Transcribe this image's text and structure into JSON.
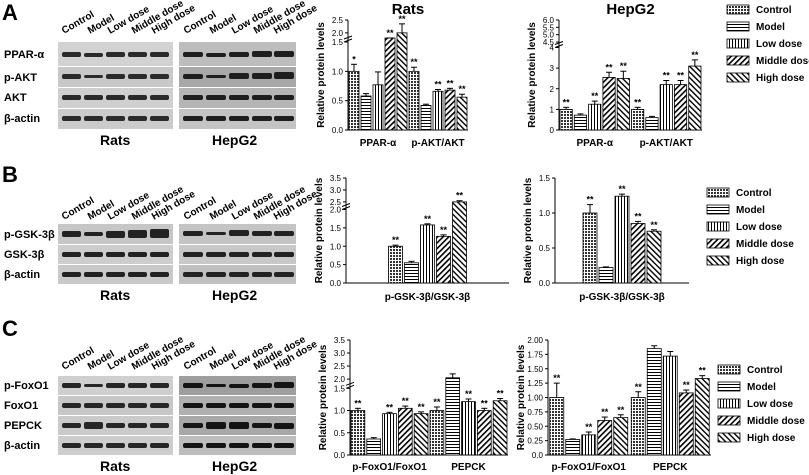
{
  "panels": [
    {
      "letter": "A",
      "blot": {
        "proteins": [
          "PPAR-α",
          "p-AKT",
          "AKT",
          "β-actin"
        ],
        "lanes": [
          "Control",
          "Model",
          "Low dose",
          "Middle dose",
          "High dose"
        ],
        "captions": [
          "Rats",
          "HepG2"
        ]
      }
    },
    {
      "letter": "B",
      "blot": {
        "proteins": [
          "p-GSK-3β",
          "GSK-3β",
          "β-actin"
        ],
        "lanes": [
          "Control",
          "Model",
          "Low dose",
          "Middle dose",
          "High dose"
        ],
        "captions": [
          "Rats",
          "HepG2"
        ]
      }
    },
    {
      "letter": "C",
      "blot": {
        "proteins": [
          "p-FoxO1",
          "FoxO1",
          "PEPCK",
          "β-actin"
        ],
        "lanes": [
          "Control",
          "Model",
          "Low dose",
          "Middle dose",
          "High dose"
        ],
        "captions": [
          "Rats",
          "HepG2"
        ]
      }
    }
  ],
  "legend": [
    "Control",
    "Model",
    "Low dose",
    "Middle dose",
    "High dose"
  ],
  "chart_data": [
    {
      "id": "A-rats",
      "type": "bar",
      "title": "Rats",
      "ylabel": "Relative protein levels",
      "categories": [
        "PPAR-α",
        "p-AKT/AKT"
      ],
      "yticks": [
        "0.0",
        "0.5",
        "1.0",
        "1.5",
        "2.0",
        "2.5"
      ],
      "series": [
        {
          "name": "Control",
          "values": [
            1.0,
            1.0
          ],
          "err": [
            0.12,
            0.07
          ],
          "sig": [
            "*",
            "**"
          ]
        },
        {
          "name": "Model",
          "values": [
            0.58,
            0.42
          ],
          "err": [
            0.04,
            0.02
          ],
          "sig": [
            "",
            ""
          ]
        },
        {
          "name": "Low dose",
          "values": [
            0.77,
            0.66
          ],
          "err": [
            0.22,
            0.03
          ],
          "sig": [
            "",
            "**"
          ]
        },
        {
          "name": "Middle dose",
          "values": [
            1.7,
            0.68
          ],
          "err": [
            0.05,
            0.03
          ],
          "sig": [
            "**",
            "**"
          ]
        },
        {
          "name": "High dose",
          "values": [
            2.0,
            0.56
          ],
          "err": [
            0.35,
            0.05
          ],
          "sig": [
            "**",
            "**"
          ]
        }
      ]
    },
    {
      "id": "A-hepg2",
      "type": "bar",
      "title": "HepG2",
      "ylabel": "Relative protein levels",
      "categories": [
        "PPAR-α",
        "p-AKT/AKT"
      ],
      "yticks": [
        "0",
        "1",
        "2",
        "3",
        "4",
        "4.5",
        "5.0",
        "5.5",
        "6.0"
      ],
      "series": [
        {
          "name": "Control",
          "values": [
            1.0,
            1.0
          ],
          "err": [
            0.1,
            0.1
          ],
          "sig": [
            "**",
            "**"
          ]
        },
        {
          "name": "Model",
          "values": [
            0.72,
            0.6
          ],
          "err": [
            0.06,
            0.06
          ],
          "sig": [
            "",
            ""
          ]
        },
        {
          "name": "Low dose",
          "values": [
            1.25,
            2.2
          ],
          "err": [
            0.15,
            0.2
          ],
          "sig": [
            "**",
            "**"
          ]
        },
        {
          "name": "Middle dose",
          "values": [
            2.55,
            2.2
          ],
          "err": [
            0.25,
            0.2
          ],
          "sig": [
            "**",
            "**"
          ]
        },
        {
          "name": "High dose",
          "values": [
            2.5,
            3.1
          ],
          "err": [
            0.35,
            0.3
          ],
          "sig": [
            "**",
            "**"
          ]
        }
      ]
    },
    {
      "id": "B-rats",
      "type": "bar",
      "title": "",
      "ylabel": "Relative protein levels",
      "categories": [
        "p-GSK-3β/GSK-3β"
      ],
      "yticks": [
        "0.0",
        "0.5",
        "1.0",
        "1.5",
        "2.0",
        "2.5",
        "3.0",
        "3.5",
        "4.0"
      ],
      "series": [
        {
          "name": "Control",
          "values": [
            1.0
          ],
          "err": [
            0.03
          ],
          "sig": [
            "**"
          ]
        },
        {
          "name": "Model",
          "values": [
            0.55
          ],
          "err": [
            0.04
          ],
          "sig": [
            ""
          ]
        },
        {
          "name": "Low dose",
          "values": [
            1.58
          ],
          "err": [
            0.03
          ],
          "sig": [
            "**"
          ]
        },
        {
          "name": "Middle dose",
          "values": [
            1.27
          ],
          "err": [
            0.04
          ],
          "sig": [
            "**"
          ]
        },
        {
          "name": "High dose",
          "values": [
            3.0
          ],
          "err": [
            0.05
          ],
          "sig": [
            "**"
          ]
        }
      ]
    },
    {
      "id": "B-hepg2",
      "type": "bar",
      "title": "",
      "ylabel": "Relative protein levels",
      "categories": [
        "p-GSK-3β/GSK-3β"
      ],
      "yticks": [
        "0.0",
        "0.5",
        "1.0",
        "1.5"
      ],
      "series": [
        {
          "name": "Control",
          "values": [
            1.0
          ],
          "err": [
            0.12
          ],
          "sig": [
            "**"
          ]
        },
        {
          "name": "Model",
          "values": [
            0.22
          ],
          "err": [
            0.01
          ],
          "sig": [
            ""
          ]
        },
        {
          "name": "Low dose",
          "values": [
            1.24
          ],
          "err": [
            0.03
          ],
          "sig": [
            "**"
          ]
        },
        {
          "name": "Middle dose",
          "values": [
            0.85
          ],
          "err": [
            0.03
          ],
          "sig": [
            "**"
          ]
        },
        {
          "name": "High dose",
          "values": [
            0.74
          ],
          "err": [
            0.02
          ],
          "sig": [
            "**"
          ]
        }
      ]
    },
    {
      "id": "C-rats",
      "type": "bar",
      "title": "",
      "ylabel": "Relative protein levels",
      "categories": [
        "p-FoxO1/FoxO1",
        "PEPCK"
      ],
      "yticks": [
        "0.0",
        "0.5",
        "1.0",
        "1.5",
        "2.0",
        "2.5",
        "3.0",
        "3.5"
      ],
      "series": [
        {
          "name": "Control",
          "values": [
            1.0,
            1.0
          ],
          "err": [
            0.05,
            0.08
          ],
          "sig": [
            "**",
            "**"
          ]
        },
        {
          "name": "Model",
          "values": [
            0.36,
            2.05
          ],
          "err": [
            0.03,
            0.15
          ],
          "sig": [
            "",
            ""
          ]
        },
        {
          "name": "Low dose",
          "values": [
            0.93,
            1.2
          ],
          "err": [
            0.03,
            0.06
          ],
          "sig": [
            "**",
            "**"
          ]
        },
        {
          "name": "Middle dose",
          "values": [
            1.05,
            1.0
          ],
          "err": [
            0.05,
            0.05
          ],
          "sig": [
            "**",
            "**"
          ]
        },
        {
          "name": "High dose",
          "values": [
            0.93,
            1.22
          ],
          "err": [
            0.04,
            0.05
          ],
          "sig": [
            "**",
            "**"
          ]
        }
      ]
    },
    {
      "id": "C-hepg2",
      "type": "bar",
      "title": "",
      "ylabel": "Relative protein levels",
      "categories": [
        "p-FoxO1/FoxO1",
        "PEPCK"
      ],
      "yticks": [
        "0.0",
        "0.25",
        "0.50",
        "0.75",
        "1.00",
        "1.25",
        "1.50",
        "1.75",
        "2.00"
      ],
      "series": [
        {
          "name": "Control",
          "values": [
            1.0,
            1.0
          ],
          "err": [
            0.25,
            0.1
          ],
          "sig": [
            "**",
            "**"
          ]
        },
        {
          "name": "Model",
          "values": [
            0.27,
            1.85
          ],
          "err": [
            0.01,
            0.05
          ],
          "sig": [
            "",
            ""
          ]
        },
        {
          "name": "Low dose",
          "values": [
            0.35,
            1.72
          ],
          "err": [
            0.05,
            0.08
          ],
          "sig": [
            "**",
            ""
          ]
        },
        {
          "name": "Middle dose",
          "values": [
            0.6,
            1.08
          ],
          "err": [
            0.06,
            0.05
          ],
          "sig": [
            "**",
            "**"
          ]
        },
        {
          "name": "High dose",
          "values": [
            0.65,
            1.33
          ],
          "err": [
            0.05,
            0.05
          ],
          "sig": [
            "**",
            "**"
          ]
        }
      ]
    }
  ]
}
